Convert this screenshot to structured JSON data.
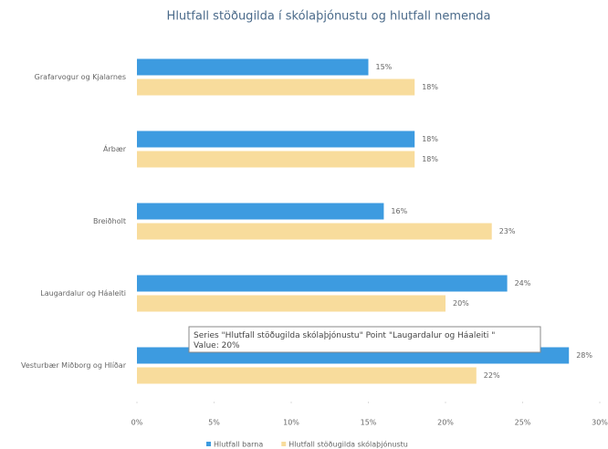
{
  "chart_data": {
    "type": "bar",
    "orientation": "horizontal",
    "title": "Hlutfall  stöðugilda í skólaþjónustu og hlutfall nemenda",
    "categories": [
      "Grafarvogur og Kjalarnes",
      "Árbær",
      "Breiðholt",
      "Laugardalur og Háaleiti",
      "Vesturbær Miðborg og Hlíðar"
    ],
    "series": [
      {
        "name": "Hlutfall barna",
        "color": "#3d9be0",
        "values": [
          15,
          18,
          16,
          24,
          28
        ],
        "value_labels": [
          "15%",
          "18%",
          "16%",
          "24%",
          "28%"
        ]
      },
      {
        "name": "Hlutfall stöðugilda skólaþjónustu",
        "color": "#f8dc9c",
        "values": [
          18,
          18,
          23,
          20,
          22
        ],
        "value_labels": [
          "18%",
          "18%",
          "23%",
          "20%",
          "22%"
        ]
      }
    ],
    "xlim": [
      0,
      30
    ],
    "xticks": [
      {
        "value": 0,
        "label": "0%"
      },
      {
        "value": 5,
        "label": "5%"
      },
      {
        "value": 10,
        "label": "10%"
      },
      {
        "value": 15,
        "label": "15%"
      },
      {
        "value": 20,
        "label": "20%"
      },
      {
        "value": 25,
        "label": "25%"
      },
      {
        "value": 30,
        "label": "30%"
      }
    ],
    "legend": "bottom",
    "tooltip": [
      "Series \"Hlutfall stöðugilda skólaþjónustu\" Point \"Laugardalur og Háaleiti \"",
      "Value: 20%"
    ]
  }
}
